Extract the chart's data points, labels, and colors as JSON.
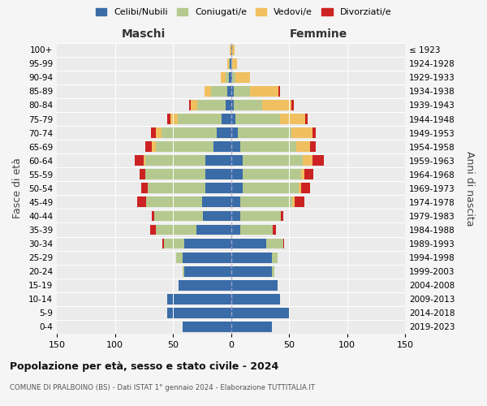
{
  "age_groups": [
    "0-4",
    "5-9",
    "10-14",
    "15-19",
    "20-24",
    "25-29",
    "30-34",
    "35-39",
    "40-44",
    "45-49",
    "50-54",
    "55-59",
    "60-64",
    "65-69",
    "70-74",
    "75-79",
    "80-84",
    "85-89",
    "90-94",
    "95-99",
    "100+"
  ],
  "birth_years": [
    "2019-2023",
    "2014-2018",
    "2009-2013",
    "2004-2008",
    "1999-2003",
    "1994-1998",
    "1989-1993",
    "1984-1988",
    "1979-1983",
    "1974-1978",
    "1969-1973",
    "1964-1968",
    "1959-1963",
    "1954-1958",
    "1949-1953",
    "1944-1948",
    "1939-1943",
    "1934-1938",
    "1929-1933",
    "1924-1928",
    "≤ 1923"
  ],
  "colors": {
    "celibe": "#3a6ca8",
    "coniugato": "#b5c98e",
    "vedovo": "#f0c060",
    "divorziato": "#cc2222"
  },
  "maschi": {
    "celibe": [
      42,
      55,
      55,
      45,
      40,
      42,
      40,
      30,
      24,
      25,
      22,
      22,
      22,
      15,
      12,
      8,
      5,
      3,
      2,
      1,
      0
    ],
    "coniugato": [
      0,
      0,
      0,
      0,
      2,
      5,
      18,
      35,
      42,
      48,
      50,
      52,
      52,
      50,
      48,
      38,
      24,
      14,
      3,
      1,
      0
    ],
    "vedovo": [
      0,
      0,
      0,
      0,
      0,
      0,
      0,
      0,
      0,
      0,
      0,
      0,
      1,
      3,
      5,
      6,
      6,
      6,
      4,
      1,
      1
    ],
    "divorziato": [
      0,
      0,
      0,
      0,
      0,
      0,
      1,
      5,
      2,
      8,
      5,
      5,
      8,
      6,
      4,
      3,
      1,
      0,
      0,
      0,
      0
    ]
  },
  "femmine": {
    "nubile": [
      35,
      50,
      42,
      40,
      35,
      35,
      30,
      8,
      8,
      8,
      10,
      10,
      10,
      8,
      6,
      4,
      2,
      2,
      1,
      0,
      1
    ],
    "coniugata": [
      0,
      0,
      0,
      0,
      2,
      5,
      15,
      28,
      35,
      45,
      48,
      50,
      52,
      48,
      46,
      38,
      25,
      14,
      3,
      1,
      0
    ],
    "vedova": [
      0,
      0,
      0,
      0,
      0,
      0,
      0,
      0,
      0,
      2,
      2,
      3,
      8,
      12,
      18,
      22,
      25,
      25,
      12,
      4,
      2
    ],
    "divorziata": [
      0,
      0,
      0,
      0,
      0,
      0,
      1,
      3,
      2,
      8,
      8,
      8,
      10,
      5,
      3,
      2,
      2,
      1,
      0,
      0,
      0
    ]
  },
  "xlim": 150,
  "title_main": "Popolazione per età, sesso e stato civile - 2024",
  "title_sub": "COMUNE DI PRALBOINO (BS) - Dati ISTAT 1° gennaio 2024 - Elaborazione TUTTITALIA.IT",
  "legend_labels": [
    "Celibi/Nubili",
    "Coniugati/e",
    "Vedovi/e",
    "Divorziati/e"
  ],
  "ylabel_left": "Fasce di età",
  "ylabel_right": "Anni di nascita",
  "label_maschi": "Maschi",
  "label_femmine": "Femmine",
  "bg_color": "#f5f5f5",
  "plot_bg": "#ebebeb"
}
